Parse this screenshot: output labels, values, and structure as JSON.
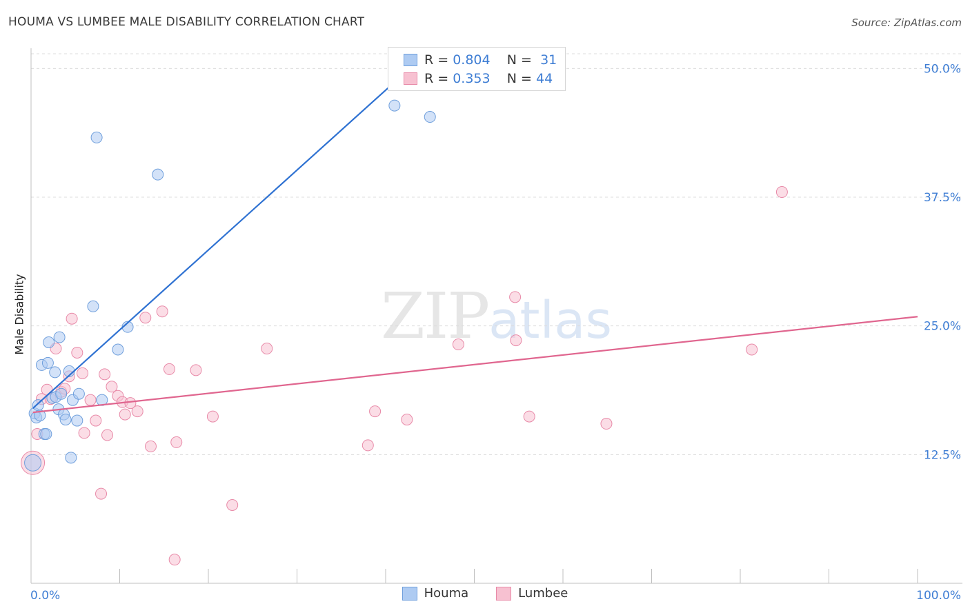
{
  "title": "HOUMA VS LUMBEE MALE DISABILITY CORRELATION CHART",
  "source": "Source: ZipAtlas.com",
  "watermark": {
    "zip": "ZIP",
    "atlas": "atlas"
  },
  "legend_top": [
    {
      "r_label": "R =",
      "r": "0.804",
      "n_label": "N =",
      "n": "31",
      "color": "#aecbf2",
      "border": "#6f9fdc"
    },
    {
      "r_label": "R =",
      "r": "0.353",
      "n_label": "N =",
      "n": "44",
      "color": "#f7c1d1",
      "border": "#e88aa8"
    }
  ],
  "chart_data": {
    "type": "scatter",
    "title": "HOUMA VS LUMBEE MALE DISABILITY CORRELATION CHART",
    "xlabel": "",
    "ylabel": "Male Disability",
    "xlim": [
      0,
      100
    ],
    "ylim": [
      0,
      52.5
    ],
    "x_tick_labels": [
      "0.0%",
      "100.0%"
    ],
    "y_ticks": [
      12.5,
      25.0,
      37.5,
      50.0
    ],
    "y_tick_labels": [
      "12.5%",
      "25.0%",
      "37.5%",
      "50.0%"
    ],
    "grid": true,
    "legend": [
      "Houma",
      "Lumbee"
    ],
    "series": [
      {
        "name": "Houma",
        "color": "#aecbf2",
        "stroke": "#6f9fdc",
        "trend_color": "#2f72d2",
        "trend": {
          "x": [
            0.2,
            44.0
          ],
          "y": [
            17.0,
            51.0
          ]
        },
        "points": [
          {
            "x": 0.2,
            "y": 11.7
          },
          {
            "x": 0.4,
            "y": 16.5
          },
          {
            "x": 0.6,
            "y": 16.1
          },
          {
            "x": 0.8,
            "y": 17.3
          },
          {
            "x": 1.0,
            "y": 16.3
          },
          {
            "x": 1.2,
            "y": 21.2
          },
          {
            "x": 1.5,
            "y": 14.5
          },
          {
            "x": 1.7,
            "y": 14.5
          },
          {
            "x": 1.9,
            "y": 21.4
          },
          {
            "x": 2.0,
            "y": 23.4
          },
          {
            "x": 2.4,
            "y": 18.0
          },
          {
            "x": 2.7,
            "y": 20.5
          },
          {
            "x": 2.8,
            "y": 18.1
          },
          {
            "x": 3.1,
            "y": 16.9
          },
          {
            "x": 3.2,
            "y": 23.9
          },
          {
            "x": 3.4,
            "y": 18.4
          },
          {
            "x": 3.7,
            "y": 16.4
          },
          {
            "x": 3.9,
            "y": 15.9
          },
          {
            "x": 4.3,
            "y": 20.6
          },
          {
            "x": 4.5,
            "y": 12.2
          },
          {
            "x": 4.7,
            "y": 17.8
          },
          {
            "x": 5.2,
            "y": 15.8
          },
          {
            "x": 5.4,
            "y": 18.4
          },
          {
            "x": 7.0,
            "y": 26.9
          },
          {
            "x": 7.4,
            "y": 43.3
          },
          {
            "x": 8.0,
            "y": 17.8
          },
          {
            "x": 9.8,
            "y": 22.7
          },
          {
            "x": 10.9,
            "y": 24.9
          },
          {
            "x": 14.3,
            "y": 39.7
          },
          {
            "x": 41.0,
            "y": 46.4
          },
          {
            "x": 45.0,
            "y": 45.3
          }
        ]
      },
      {
        "name": "Lumbee",
        "color": "#f7c1d1",
        "stroke": "#e88aa8",
        "trend_color": "#e0668f",
        "trend": {
          "x": [
            0.2,
            100.0
          ],
          "y": [
            16.6,
            25.9
          ]
        },
        "points": [
          {
            "x": 0.2,
            "y": 11.7
          },
          {
            "x": 0.7,
            "y": 14.5
          },
          {
            "x": 1.2,
            "y": 17.9
          },
          {
            "x": 1.8,
            "y": 18.8
          },
          {
            "x": 2.2,
            "y": 17.9
          },
          {
            "x": 2.8,
            "y": 22.8
          },
          {
            "x": 3.4,
            "y": 18.6
          },
          {
            "x": 3.8,
            "y": 18.9
          },
          {
            "x": 4.3,
            "y": 20.1
          },
          {
            "x": 4.6,
            "y": 25.7
          },
          {
            "x": 5.2,
            "y": 22.4
          },
          {
            "x": 5.8,
            "y": 20.4
          },
          {
            "x": 6.0,
            "y": 14.6
          },
          {
            "x": 6.7,
            "y": 17.8
          },
          {
            "x": 7.3,
            "y": 15.8
          },
          {
            "x": 7.9,
            "y": 8.7
          },
          {
            "x": 8.3,
            "y": 20.3
          },
          {
            "x": 8.6,
            "y": 14.4
          },
          {
            "x": 9.1,
            "y": 19.1
          },
          {
            "x": 9.8,
            "y": 18.2
          },
          {
            "x": 10.3,
            "y": 17.6
          },
          {
            "x": 10.6,
            "y": 16.4
          },
          {
            "x": 11.2,
            "y": 17.5
          },
          {
            "x": 12.0,
            "y": 16.7
          },
          {
            "x": 12.9,
            "y": 25.8
          },
          {
            "x": 13.5,
            "y": 13.3
          },
          {
            "x": 14.8,
            "y": 26.4
          },
          {
            "x": 15.6,
            "y": 20.8
          },
          {
            "x": 16.2,
            "y": 2.3
          },
          {
            "x": 16.4,
            "y": 13.7
          },
          {
            "x": 18.6,
            "y": 20.7
          },
          {
            "x": 20.5,
            "y": 16.2
          },
          {
            "x": 22.7,
            "y": 7.6
          },
          {
            "x": 26.6,
            "y": 22.8
          },
          {
            "x": 38.0,
            "y": 13.4
          },
          {
            "x": 38.8,
            "y": 16.7
          },
          {
            "x": 42.4,
            "y": 15.9
          },
          {
            "x": 48.2,
            "y": 23.2
          },
          {
            "x": 54.6,
            "y": 27.8
          },
          {
            "x": 54.7,
            "y": 23.6
          },
          {
            "x": 56.2,
            "y": 16.2
          },
          {
            "x": 64.9,
            "y": 15.5
          },
          {
            "x": 81.3,
            "y": 22.7
          },
          {
            "x": 84.7,
            "y": 38.0
          }
        ]
      }
    ]
  }
}
